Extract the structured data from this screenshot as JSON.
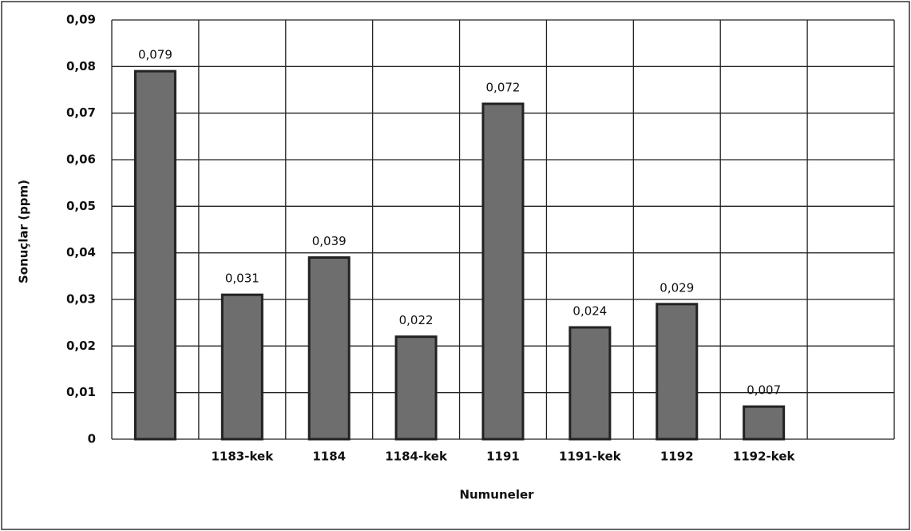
{
  "chart_data": {
    "type": "bar",
    "x_label": "Numuneler",
    "y_label": "Sonuçlar (ppm)",
    "categories": [
      null,
      "1183-kek",
      "1184",
      "1184-kek",
      "1191",
      "1191-kek",
      "1192",
      "1192-kek",
      null
    ],
    "values": [
      0.079,
      0.031,
      0.039,
      0.022,
      0.072,
      0.024,
      0.029,
      0.007,
      null
    ],
    "value_labels": [
      "0,079",
      "0,031",
      "0,039",
      "0,022",
      "0,072",
      "0,024",
      "0,029",
      "0,007",
      null
    ],
    "color": "#6e6e6e",
    "ylim": [
      0,
      0.09
    ],
    "yticks": [
      0,
      {
        "value": 0.01,
        "label": "0,01"
      },
      {
        "value": 0.02,
        "label": "0,02"
      },
      {
        "value": 0.03,
        "label": "0,03"
      },
      {
        "value": 0.04,
        "label": "0,04"
      },
      {
        "value": 0.05,
        "label": "0,05"
      },
      {
        "value": 0.06,
        "label": "0,06"
      },
      {
        "value": 0.07,
        "label": "0,07"
      },
      {
        "value": 0.08,
        "label": "0,08"
      },
      {
        "value": 0.09,
        "label": "0,09"
      }
    ],
    "grid": true
  }
}
